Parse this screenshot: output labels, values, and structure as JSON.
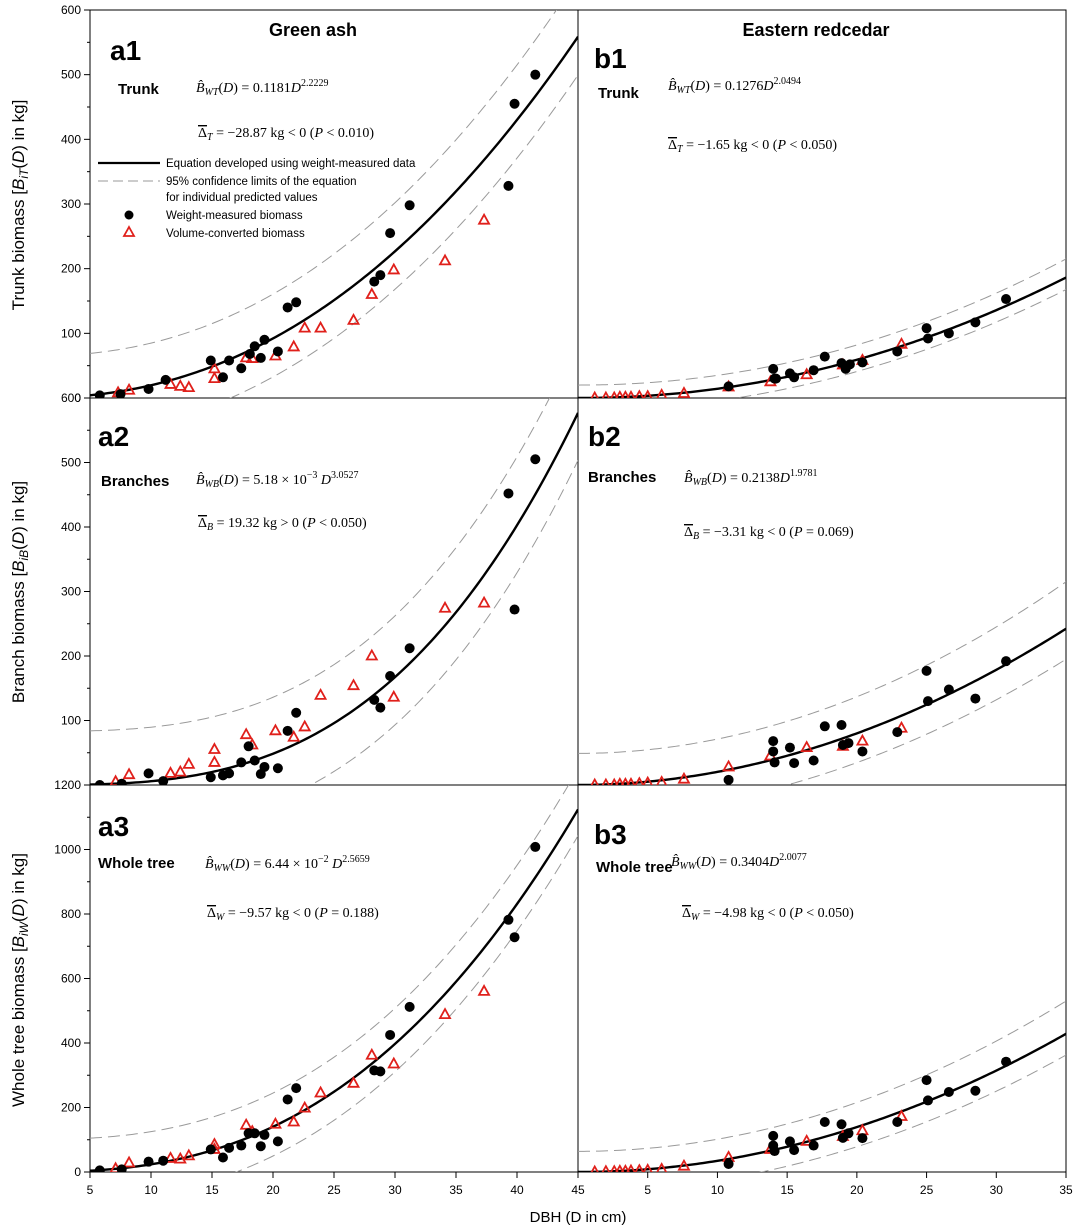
{
  "figure": {
    "col_titles": [
      "Green ash",
      "Eastern redcedar"
    ],
    "x_axis_label": "DBH (D in cm)",
    "row_ylabels": [
      "Trunk biomass [B_iT(D) in kg]",
      "Branch biomass [B_iB(D) in kg]",
      "Whole tree biomass [B_iW(D) in kg]"
    ],
    "legend": {
      "fit": "Equation developed using weight-measured data",
      "ci_line1": "95% confidence limits of the equation",
      "ci_line2": "for individual predicted values",
      "weight": "Weight-measured biomass",
      "volume": "Volume-converted biomass"
    },
    "colors": {
      "fit": "#000000",
      "ci": "#9a9a9a",
      "weight": "#000000",
      "volume": "#e0201b"
    }
  },
  "chart_data": [
    {
      "type": "scatter",
      "id": "a1",
      "label": "a1",
      "species": "Green ash",
      "part": "Trunk",
      "equation": "B̂WT(D) = 0.1181 D^2.2229",
      "delta": "Δ̄T = −28.87 kg < 0 (P < 0.010)",
      "fit": {
        "a": 0.1181,
        "b": 2.2229
      },
      "ci": {
        "lo_zero": 17,
        "hi_at_min": 69,
        "hi_at_max": 650
      },
      "xlim": [
        5,
        45
      ],
      "ylim": [
        0,
        600
      ],
      "yticks": [
        0,
        100,
        200,
        300,
        400,
        500,
        600
      ],
      "ylabel": "Trunk biomass [B_iT(D) in kg]",
      "weight_measured": [
        [
          5.8,
          4
        ],
        [
          7.5,
          6
        ],
        [
          9.8,
          14
        ],
        [
          11.2,
          28
        ],
        [
          14.9,
          58
        ],
        [
          15.9,
          32
        ],
        [
          16.4,
          58
        ],
        [
          17.4,
          46
        ],
        [
          18.1,
          68
        ],
        [
          18.5,
          80
        ],
        [
          19.0,
          62
        ],
        [
          19.3,
          90
        ],
        [
          20.4,
          72
        ],
        [
          21.2,
          140
        ],
        [
          21.9,
          148
        ],
        [
          28.3,
          180
        ],
        [
          28.8,
          190
        ],
        [
          29.6,
          255
        ],
        [
          31.2,
          298
        ],
        [
          39.3,
          328
        ],
        [
          39.8,
          455
        ],
        [
          41.5,
          500
        ]
      ],
      "volume_converted": [
        [
          7.3,
          8
        ],
        [
          8.2,
          12
        ],
        [
          11.6,
          21
        ],
        [
          12.4,
          18
        ],
        [
          13.1,
          16
        ],
        [
          15.2,
          45
        ],
        [
          15.2,
          30
        ],
        [
          17.8,
          62
        ],
        [
          18.3,
          61
        ],
        [
          20.2,
          65
        ],
        [
          21.7,
          79
        ],
        [
          22.6,
          108
        ],
        [
          23.9,
          108
        ],
        [
          26.6,
          120
        ],
        [
          28.1,
          160
        ],
        [
          29.9,
          198
        ],
        [
          34.1,
          212
        ],
        [
          37.3,
          275
        ]
      ]
    },
    {
      "type": "scatter",
      "id": "a2",
      "label": "a2",
      "species": "Green ash",
      "part": "Branches",
      "equation": "B̂WB(D) = 5.18 × 10^-3 D^3.0527",
      "delta": "Δ̄B = 19.32 kg > 0 (P < 0.050)",
      "fit": {
        "a": 0.00518,
        "b": 3.0527
      },
      "ci": {
        "lo_zero": 24,
        "hi_at_min": 84,
        "hi_at_max": 690
      },
      "xlim": [
        5,
        45
      ],
      "ylim": [
        0,
        600
      ],
      "yticks": [
        100,
        200,
        300,
        400,
        500,
        600
      ],
      "ylabel": "Branch biomass [B_iB(D) in kg]",
      "weight_measured": [
        [
          5.8,
          0
        ],
        [
          7.6,
          2
        ],
        [
          9.8,
          18
        ],
        [
          11.0,
          6
        ],
        [
          14.9,
          12
        ],
        [
          15.9,
          15
        ],
        [
          16.4,
          18
        ],
        [
          17.4,
          35
        ],
        [
          18.0,
          60
        ],
        [
          18.5,
          38
        ],
        [
          19.0,
          17
        ],
        [
          19.3,
          28
        ],
        [
          20.4,
          26
        ],
        [
          21.2,
          84
        ],
        [
          21.9,
          112
        ],
        [
          28.3,
          132
        ],
        [
          28.8,
          120
        ],
        [
          29.6,
          169
        ],
        [
          31.2,
          212
        ],
        [
          39.3,
          452
        ],
        [
          39.8,
          272
        ],
        [
          41.5,
          505
        ]
      ],
      "volume_converted": [
        [
          7.1,
          5
        ],
        [
          8.2,
          16
        ],
        [
          11.6,
          18
        ],
        [
          12.4,
          20
        ],
        [
          13.1,
          32
        ],
        [
          15.2,
          55
        ],
        [
          15.2,
          35
        ],
        [
          17.8,
          78
        ],
        [
          18.3,
          62
        ],
        [
          20.2,
          84
        ],
        [
          21.7,
          74
        ],
        [
          22.6,
          90
        ],
        [
          23.9,
          139
        ],
        [
          26.6,
          154
        ],
        [
          28.1,
          200
        ],
        [
          29.9,
          136
        ],
        [
          34.1,
          274
        ],
        [
          37.3,
          282
        ]
      ]
    },
    {
      "type": "scatter",
      "id": "a3",
      "label": "a3",
      "species": "Green ash",
      "part": "Whole tree",
      "equation": "B̂WW(D) = 6.44 × 10^-2 D^2.5659",
      "delta": "Δ̄W = −9.57 kg < 0 (P = 0.188)",
      "fit": {
        "a": 0.0644,
        "b": 2.5659
      },
      "ci": {
        "lo_zero": 20,
        "hi_at_min": 105,
        "hi_at_max": 1250
      },
      "xlim": [
        5,
        45
      ],
      "ylim": [
        0,
        1200
      ],
      "yticks": [
        0,
        200,
        400,
        600,
        800,
        1000,
        1200
      ],
      "ylabel": "Whole tree biomass [B_iW(D) in kg]",
      "weight_measured": [
        [
          5.8,
          5
        ],
        [
          7.6,
          8
        ],
        [
          9.8,
          32
        ],
        [
          11.0,
          35
        ],
        [
          14.9,
          70
        ],
        [
          15.9,
          45
        ],
        [
          16.4,
          75
        ],
        [
          17.4,
          82
        ],
        [
          18.0,
          120
        ],
        [
          18.5,
          120
        ],
        [
          19.0,
          80
        ],
        [
          19.3,
          115
        ],
        [
          20.4,
          95
        ],
        [
          21.2,
          225
        ],
        [
          21.9,
          260
        ],
        [
          28.3,
          315
        ],
        [
          28.8,
          312
        ],
        [
          29.6,
          425
        ],
        [
          31.2,
          512
        ],
        [
          39.3,
          782
        ],
        [
          39.8,
          728
        ],
        [
          41.5,
          1008
        ]
      ],
      "volume_converted": [
        [
          7.1,
          10
        ],
        [
          8.2,
          28
        ],
        [
          11.6,
          42
        ],
        [
          12.4,
          40
        ],
        [
          13.1,
          50
        ],
        [
          15.2,
          85
        ],
        [
          15.2,
          70
        ],
        [
          17.8,
          145
        ],
        [
          18.3,
          125
        ],
        [
          20.2,
          148
        ],
        [
          21.7,
          155
        ],
        [
          22.6,
          198
        ],
        [
          23.9,
          245
        ],
        [
          26.6,
          275
        ],
        [
          28.1,
          362
        ],
        [
          29.9,
          335
        ],
        [
          34.1,
          488
        ],
        [
          37.3,
          560
        ]
      ]
    },
    {
      "type": "scatter",
      "id": "b1",
      "label": "b1",
      "species": "Eastern redcedar",
      "part": "Trunk",
      "equation": "B̂WT(D) = 0.1276 D^2.0494",
      "delta": "Δ̄T = −1.65 kg < 0 (P < 0.050)",
      "fit": {
        "a": 0.1276,
        "b": 2.0494
      },
      "ci": {
        "lo_zero": 9,
        "hi_at_min": 20,
        "hi_at_max": 215
      },
      "xlim": [
        0,
        35
      ],
      "ylim": [
        0,
        600
      ],
      "weight_measured": [
        [
          10.8,
          18
        ],
        [
          14.0,
          45
        ],
        [
          14.1,
          30
        ],
        [
          14.2,
          30
        ],
        [
          15.2,
          38
        ],
        [
          15.5,
          32
        ],
        [
          16.9,
          43
        ],
        [
          17.7,
          64
        ],
        [
          18.9,
          54
        ],
        [
          19.2,
          45
        ],
        [
          19.5,
          52
        ],
        [
          20.4,
          55
        ],
        [
          22.9,
          72
        ],
        [
          25.0,
          108
        ],
        [
          25.1,
          92
        ],
        [
          26.6,
          100
        ],
        [
          28.5,
          117
        ],
        [
          30.7,
          153
        ]
      ],
      "volume_converted": [
        [
          1.2,
          0
        ],
        [
          2.0,
          0
        ],
        [
          2.6,
          0
        ],
        [
          3.0,
          1
        ],
        [
          3.4,
          1
        ],
        [
          3.8,
          1
        ],
        [
          4.4,
          2
        ],
        [
          5.0,
          2
        ],
        [
          6.0,
          4
        ],
        [
          7.6,
          7
        ],
        [
          10.8,
          17
        ],
        [
          13.8,
          25
        ],
        [
          16.4,
          36
        ],
        [
          19.0,
          51
        ],
        [
          20.4,
          58
        ],
        [
          23.2,
          83
        ]
      ]
    },
    {
      "type": "scatter",
      "id": "b2",
      "label": "b2",
      "species": "Eastern redcedar",
      "part": "Branches",
      "equation": "B̂WB(D) = 0.2138 D^1.9781",
      "delta": "Δ̄B = −3.31 kg < 0 (P = 0.069)",
      "fit": {
        "a": 0.2138,
        "b": 1.9781
      },
      "ci": {
        "lo_zero": 8,
        "hi_at_min": 49,
        "hi_at_max": 315
      },
      "xlim": [
        0,
        35
      ],
      "ylim": [
        0,
        600
      ],
      "weight_measured": [
        [
          10.8,
          8
        ],
        [
          14.0,
          68
        ],
        [
          14.0,
          52
        ],
        [
          14.1,
          35
        ],
        [
          15.2,
          58
        ],
        [
          15.5,
          34
        ],
        [
          16.9,
          38
        ],
        [
          17.7,
          91
        ],
        [
          18.9,
          93
        ],
        [
          19.0,
          62
        ],
        [
          19.4,
          65
        ],
        [
          20.4,
          52
        ],
        [
          22.9,
          82
        ],
        [
          25.0,
          177
        ],
        [
          25.1,
          130
        ],
        [
          26.6,
          148
        ],
        [
          28.5,
          134
        ],
        [
          30.7,
          192
        ]
      ],
      "volume_converted": [
        [
          1.2,
          0
        ],
        [
          2.0,
          0
        ],
        [
          2.6,
          0
        ],
        [
          3.0,
          1
        ],
        [
          3.4,
          1
        ],
        [
          3.8,
          1
        ],
        [
          4.4,
          2
        ],
        [
          5.0,
          3
        ],
        [
          6.0,
          4
        ],
        [
          7.6,
          9
        ],
        [
          10.8,
          28
        ],
        [
          13.8,
          45
        ],
        [
          16.4,
          58
        ],
        [
          19.0,
          60
        ],
        [
          20.4,
          68
        ],
        [
          23.2,
          88
        ]
      ]
    },
    {
      "type": "scatter",
      "id": "b3",
      "label": "b3",
      "species": "Eastern redcedar",
      "part": "Whole tree",
      "equation": "B̂WW(D) = 0.3404 D^2.0077",
      "delta": "Δ̄W = −4.98 kg < 0 (P < 0.050)",
      "fit": {
        "a": 0.3404,
        "b": 2.0077
      },
      "ci": {
        "lo_zero": 14,
        "hi_at_min": 64,
        "hi_at_max": 530
      },
      "xlim": [
        0,
        35
      ],
      "ylim": [
        0,
        1200
      ],
      "weight_measured": [
        [
          10.8,
          25
        ],
        [
          14.0,
          112
        ],
        [
          14.0,
          82
        ],
        [
          14.1,
          65
        ],
        [
          15.2,
          95
        ],
        [
          15.5,
          68
        ],
        [
          16.9,
          82
        ],
        [
          17.7,
          155
        ],
        [
          18.9,
          148
        ],
        [
          19.0,
          106
        ],
        [
          19.4,
          120
        ],
        [
          20.4,
          105
        ],
        [
          22.9,
          155
        ],
        [
          25.0,
          285
        ],
        [
          25.1,
          222
        ],
        [
          26.6,
          248
        ],
        [
          28.5,
          252
        ],
        [
          30.7,
          342
        ]
      ],
      "volume_converted": [
        [
          1.2,
          0
        ],
        [
          2.0,
          1
        ],
        [
          2.6,
          1
        ],
        [
          3.0,
          2
        ],
        [
          3.4,
          2
        ],
        [
          3.8,
          3
        ],
        [
          4.4,
          4
        ],
        [
          5.0,
          5
        ],
        [
          6.0,
          8
        ],
        [
          7.6,
          18
        ],
        [
          10.8,
          45
        ],
        [
          13.8,
          70
        ],
        [
          16.4,
          95
        ],
        [
          19.0,
          110
        ],
        [
          20.4,
          128
        ],
        [
          23.2,
          172
        ]
      ]
    }
  ]
}
